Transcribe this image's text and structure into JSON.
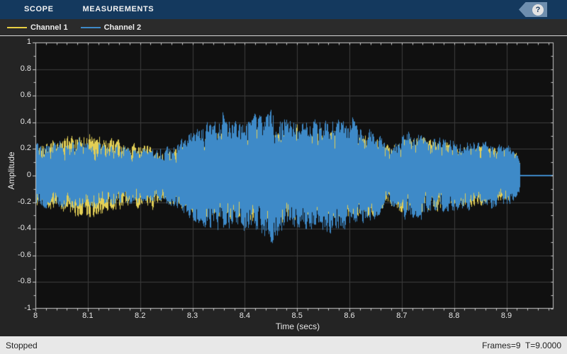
{
  "topbar": {
    "tabs": [
      "SCOPE",
      "MEASUREMENTS"
    ],
    "help_glyph": "?",
    "bar_color": "#14395e",
    "help_flag_color": "#6e8eae"
  },
  "legend": {
    "items": [
      {
        "label": "Channel 1",
        "color": "#e8cf43"
      },
      {
        "label": "Channel 2",
        "color": "#3e8ac8"
      }
    ]
  },
  "status": {
    "left": "Stopped",
    "right": "Frames=9  T=9.0000"
  },
  "chart_data": {
    "type": "line",
    "xlabel": "Time (secs)",
    "ylabel": "Amplitude",
    "xlim": [
      8,
      8.99
    ],
    "ylim": [
      -1,
      1
    ],
    "xticks": [
      {
        "t": 8.0,
        "label": "8"
      },
      {
        "t": 8.1,
        "label": "8.1"
      },
      {
        "t": 8.2,
        "label": "8.2"
      },
      {
        "t": 8.3,
        "label": "8.3"
      },
      {
        "t": 8.4,
        "label": "8.4"
      },
      {
        "t": 8.5,
        "label": "8.5"
      },
      {
        "t": 8.6,
        "label": "8.6"
      },
      {
        "t": 8.7,
        "label": "8.7"
      },
      {
        "t": 8.8,
        "label": "8.8"
      },
      {
        "t": 8.9,
        "label": "8.9"
      }
    ],
    "yticks": [
      {
        "v": 1.0,
        "label": "1"
      },
      {
        "v": 0.8,
        "label": "0.8"
      },
      {
        "v": 0.6,
        "label": "0.6"
      },
      {
        "v": 0.4,
        "label": "0.4"
      },
      {
        "v": 0.2,
        "label": "0.2"
      },
      {
        "v": 0.0,
        "label": "0"
      },
      {
        "v": -0.2,
        "label": "-0.2"
      },
      {
        "v": -0.4,
        "label": "-0.4"
      },
      {
        "v": -0.6,
        "label": "-0.6"
      },
      {
        "v": -0.8,
        "label": "-0.8"
      },
      {
        "v": -1.0,
        "label": "-1"
      }
    ],
    "x_minor_step": 0.02,
    "y_minor_step": 0.1,
    "grid": true,
    "plot_bg": "#101010",
    "outer_bg": "#242424",
    "grid_color": "#3c3c3c",
    "axis_color": "#c9c9c9",
    "text_color": "#e6e6e6",
    "signal_end": 8.925,
    "flat_value": 0,
    "series": [
      {
        "name": "Channel 1",
        "color": "#e3cf55",
        "envelope": [
          [
            8.0,
            0.27
          ],
          [
            8.03,
            0.26
          ],
          [
            8.06,
            0.31
          ],
          [
            8.09,
            0.36
          ],
          [
            8.12,
            0.34
          ],
          [
            8.15,
            0.29
          ],
          [
            8.18,
            0.27
          ],
          [
            8.21,
            0.26
          ],
          [
            8.24,
            0.22
          ],
          [
            8.27,
            0.25
          ],
          [
            8.3,
            0.31
          ],
          [
            8.33,
            0.35
          ],
          [
            8.36,
            0.37
          ],
          [
            8.39,
            0.35
          ],
          [
            8.42,
            0.39
          ],
          [
            8.45,
            0.41
          ],
          [
            8.48,
            0.37
          ],
          [
            8.51,
            0.34
          ],
          [
            8.54,
            0.35
          ],
          [
            8.57,
            0.37
          ],
          [
            8.6,
            0.35
          ],
          [
            8.63,
            0.33
          ],
          [
            8.655,
            0.3
          ],
          [
            8.675,
            0.24
          ],
          [
            8.7,
            0.3
          ],
          [
            8.71,
            0.31
          ],
          [
            8.73,
            0.3
          ],
          [
            8.75,
            0.29
          ],
          [
            8.78,
            0.27
          ],
          [
            8.81,
            0.25
          ],
          [
            8.84,
            0.25
          ],
          [
            8.87,
            0.23
          ],
          [
            8.9,
            0.21
          ],
          [
            8.915,
            0.18
          ],
          [
            8.925,
            0.1
          ]
        ]
      },
      {
        "name": "Channel 2",
        "color": "#3e8ac8",
        "envelope": [
          [
            8.0,
            0.25
          ],
          [
            8.03,
            0.27
          ],
          [
            8.06,
            0.26
          ],
          [
            8.09,
            0.27
          ],
          [
            8.12,
            0.26
          ],
          [
            8.15,
            0.25
          ],
          [
            8.18,
            0.24
          ],
          [
            8.21,
            0.21
          ],
          [
            8.24,
            0.21
          ],
          [
            8.27,
            0.27
          ],
          [
            8.3,
            0.37
          ],
          [
            8.33,
            0.43
          ],
          [
            8.36,
            0.47
          ],
          [
            8.39,
            0.45
          ],
          [
            8.42,
            0.48
          ],
          [
            8.45,
            0.53
          ],
          [
            8.48,
            0.47
          ],
          [
            8.51,
            0.43
          ],
          [
            8.54,
            0.45
          ],
          [
            8.57,
            0.47
          ],
          [
            8.6,
            0.43
          ],
          [
            8.63,
            0.41
          ],
          [
            8.655,
            0.32
          ],
          [
            8.675,
            0.23
          ],
          [
            8.7,
            0.33
          ],
          [
            8.71,
            0.38
          ],
          [
            8.73,
            0.34
          ],
          [
            8.75,
            0.33
          ],
          [
            8.78,
            0.31
          ],
          [
            8.81,
            0.27
          ],
          [
            8.84,
            0.29
          ],
          [
            8.87,
            0.25
          ],
          [
            8.9,
            0.25
          ],
          [
            8.915,
            0.21
          ],
          [
            8.925,
            0.12
          ]
        ]
      }
    ]
  }
}
